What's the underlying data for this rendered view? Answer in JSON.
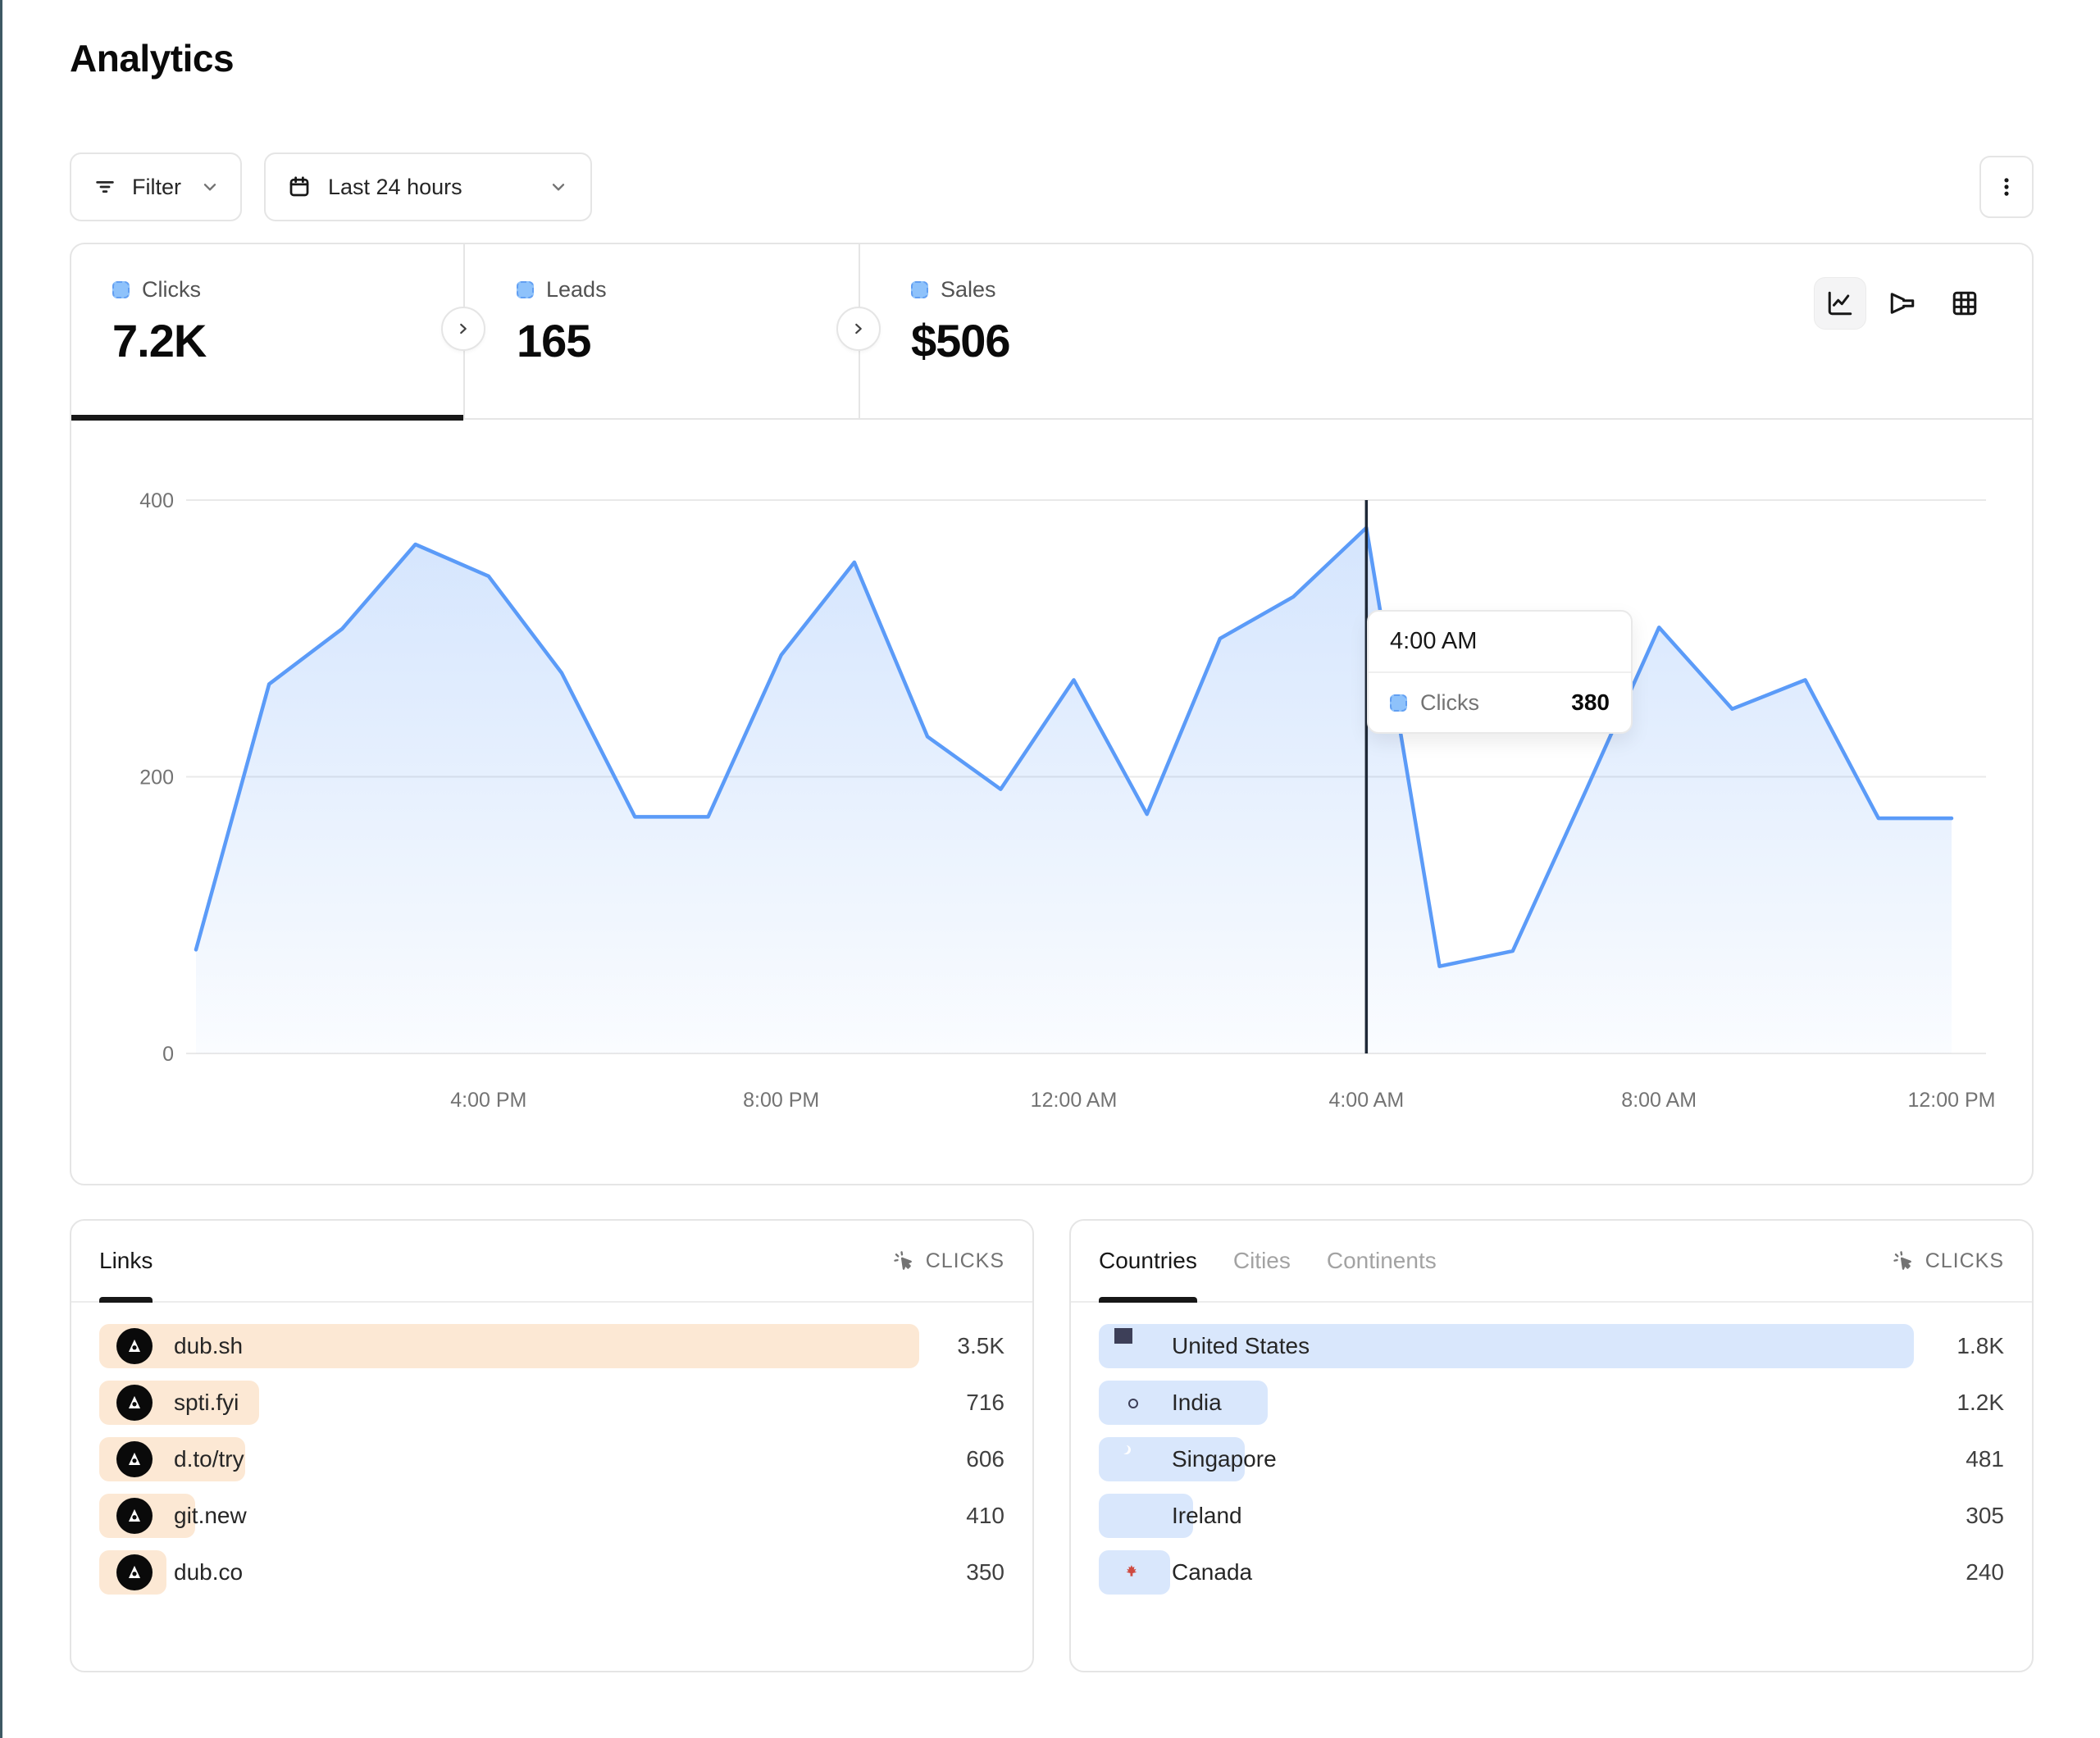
{
  "page": {
    "title": "Analytics"
  },
  "toolbar": {
    "filter": {
      "label": "Filter"
    },
    "date_range": {
      "label": "Last 24 hours"
    }
  },
  "stats": {
    "tabs": [
      {
        "label": "Clicks",
        "value": "7.2K",
        "active": true
      },
      {
        "label": "Leads",
        "value": "165",
        "active": false
      },
      {
        "label": "Sales",
        "value": "$506",
        "active": false
      }
    ]
  },
  "chart_data": {
    "type": "area",
    "title": "",
    "xlabel": "",
    "ylabel": "",
    "ylim": [
      0,
      400
    ],
    "yticks": [
      0,
      200,
      400
    ],
    "xticks": [
      "4:00 PM",
      "8:00 PM",
      "12:00 AM",
      "4:00 AM",
      "8:00 AM",
      "12:00 PM"
    ],
    "grid": true,
    "legend_position": "none",
    "series": [
      {
        "name": "Clicks",
        "color": "#5b9bf8",
        "x": [
          "12:00 PM",
          "1:00 PM",
          "2:00 PM",
          "3:00 PM",
          "4:00 PM",
          "5:00 PM",
          "6:00 PM",
          "7:00 PM",
          "8:00 PM",
          "9:00 PM",
          "10:00 PM",
          "11:00 PM",
          "12:00 AM",
          "1:00 AM",
          "2:00 AM",
          "3:00 AM",
          "4:00 AM",
          "5:00 AM",
          "6:00 AM",
          "7:00 AM",
          "8:00 AM",
          "9:00 AM",
          "10:00 AM",
          "11:00 AM",
          "12:00 PM"
        ],
        "values": [
          75,
          267,
          307,
          368,
          345,
          275,
          171,
          171,
          288,
          355,
          229,
          191,
          270,
          173,
          300,
          330,
          380,
          63,
          74,
          190,
          308,
          249,
          270,
          170,
          170
        ]
      }
    ],
    "hover": {
      "x": "4:00 AM",
      "series": "Clicks",
      "value": 380
    }
  },
  "tooltip": {
    "time": "4:00 AM",
    "series": "Clicks",
    "value": "380"
  },
  "links_card": {
    "tab": "Links",
    "metric": "CLICKS",
    "rows": [
      {
        "label": "dub.sh",
        "value": "3.5K",
        "bar_pct": 90.6
      },
      {
        "label": "spti.fyi",
        "value": "716",
        "bar_pct": 17.7
      },
      {
        "label": "d.to/try",
        "value": "606",
        "bar_pct": 16.1
      },
      {
        "label": "git.new",
        "value": "410",
        "bar_pct": 10.6
      },
      {
        "label": "dub.co",
        "value": "350",
        "bar_pct": 7.4
      }
    ]
  },
  "countries_card": {
    "tabs": [
      {
        "label": "Countries",
        "active": true
      },
      {
        "label": "Cities",
        "active": false
      },
      {
        "label": "Continents",
        "active": false
      }
    ],
    "metric": "CLICKS",
    "rows": [
      {
        "label": "United States",
        "value": "1.8K",
        "flag": "us",
        "bar_pct": 90.0
      },
      {
        "label": "India",
        "value": "1.2K",
        "flag": "in",
        "bar_pct": 18.7
      },
      {
        "label": "Singapore",
        "value": "481",
        "flag": "sg",
        "bar_pct": 16.1
      },
      {
        "label": "Ireland",
        "value": "305",
        "flag": "ie",
        "bar_pct": 10.4
      },
      {
        "label": "Canada",
        "value": "240",
        "flag": "ca",
        "bar_pct": 7.9
      }
    ]
  },
  "colors": {
    "line_blue": "#5b9bf8",
    "legend_square": "#8ec2fb",
    "bar_orange": "#fce8d4",
    "bar_blue": "#d9e7fc",
    "hover_line": "#1f2937"
  }
}
